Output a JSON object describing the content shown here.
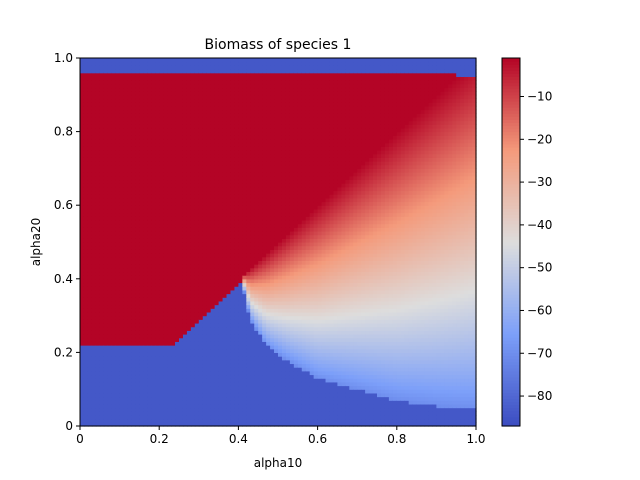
{
  "chart_data": {
    "type": "heatmap",
    "title": "Biomass of species 1",
    "xlabel": "alpha10",
    "ylabel": "alpha20",
    "xlim": [
      0,
      1
    ],
    "ylim": [
      0,
      1
    ],
    "colormap": "coolwarm",
    "color_range": [
      -87,
      -1
    ],
    "x_ticks": [
      "0",
      "0.2",
      "0.4",
      "0.6",
      "0.8",
      "1.0"
    ],
    "y_ticks": [
      "0",
      "0.2",
      "0.4",
      "0.6",
      "0.8",
      "1.0"
    ],
    "colorbar_ticks": [
      "−10",
      "−20",
      "−30",
      "−40",
      "−50",
      "−60",
      "−70",
      "−80"
    ],
    "colorbar_tick_values": [
      -10,
      -20,
      -30,
      -40,
      -50,
      -60,
      -70,
      -80
    ],
    "grid": false,
    "regions": {
      "top_band_above_y": 0.955,
      "top_band_value": -84,
      "red_plateau_value": -1,
      "red_plateau_min_y": 0.225,
      "low_region_value": -84,
      "diagonal_boundary": "y = x (approx)",
      "cusp_at": [
        0.41,
        0.39
      ],
      "gradient_low_end": -70
    },
    "lower_boundary_curve": [
      [
        0.0,
        0.225
      ],
      [
        0.24,
        0.225
      ],
      [
        0.3,
        0.29
      ],
      [
        0.36,
        0.35
      ],
      [
        0.41,
        0.39
      ],
      [
        0.43,
        0.29
      ],
      [
        0.47,
        0.22
      ],
      [
        0.52,
        0.18
      ],
      [
        0.6,
        0.13
      ],
      [
        0.7,
        0.1
      ],
      [
        0.8,
        0.07
      ],
      [
        0.9,
        0.055
      ],
      [
        1.0,
        0.045
      ]
    ]
  }
}
